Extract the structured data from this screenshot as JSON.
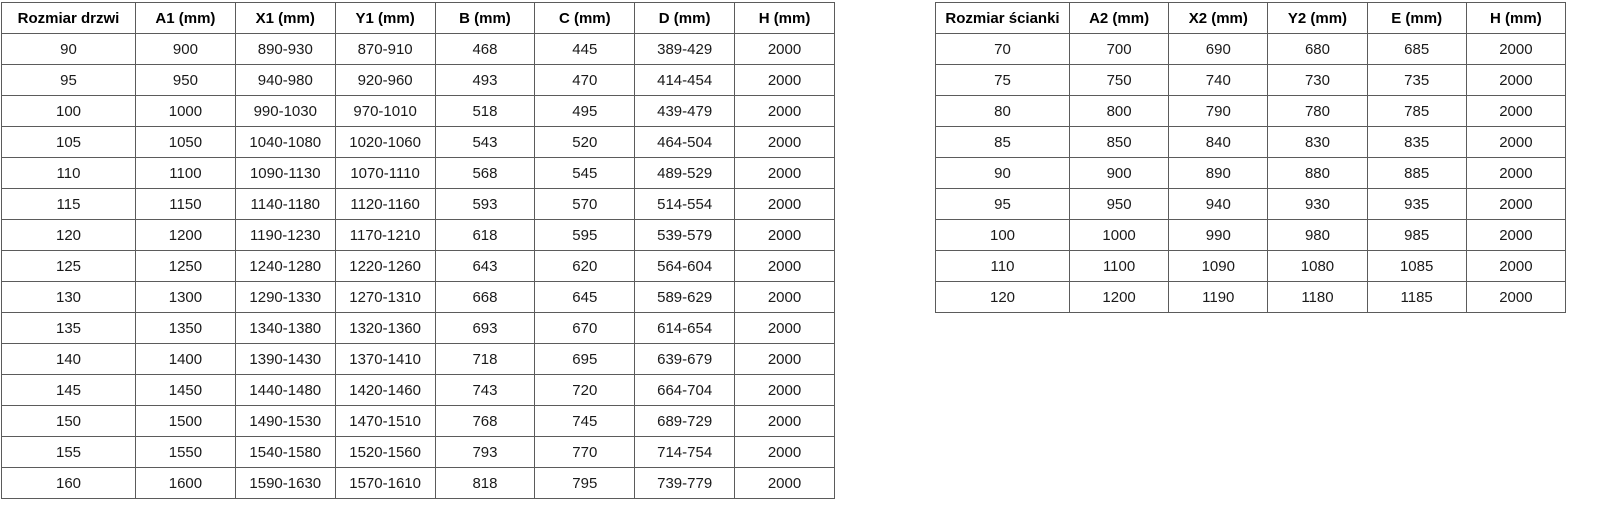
{
  "colors": {
    "background": "#ffffff",
    "border": "#5b5b5b",
    "header_text": "#000000",
    "cell_text": "#1a1a1a"
  },
  "tables": [
    {
      "name": "door-size-table",
      "headers": [
        "Rozmiar drzwi",
        "A1 (mm)",
        "X1 (mm)",
        "Y1 (mm)",
        "B (mm)",
        "C (mm)",
        "D (mm)",
        "H (mm)"
      ],
      "rows": [
        [
          "90",
          "900",
          "890-930",
          "870-910",
          "468",
          "445",
          "389-429",
          "2000"
        ],
        [
          "95",
          "950",
          "940-980",
          "920-960",
          "493",
          "470",
          "414-454",
          "2000"
        ],
        [
          "100",
          "1000",
          "990-1030",
          "970-1010",
          "518",
          "495",
          "439-479",
          "2000"
        ],
        [
          "105",
          "1050",
          "1040-1080",
          "1020-1060",
          "543",
          "520",
          "464-504",
          "2000"
        ],
        [
          "110",
          "1100",
          "1090-1130",
          "1070-1110",
          "568",
          "545",
          "489-529",
          "2000"
        ],
        [
          "115",
          "1150",
          "1140-1180",
          "1120-1160",
          "593",
          "570",
          "514-554",
          "2000"
        ],
        [
          "120",
          "1200",
          "1190-1230",
          "1170-1210",
          "618",
          "595",
          "539-579",
          "2000"
        ],
        [
          "125",
          "1250",
          "1240-1280",
          "1220-1260",
          "643",
          "620",
          "564-604",
          "2000"
        ],
        [
          "130",
          "1300",
          "1290-1330",
          "1270-1310",
          "668",
          "645",
          "589-629",
          "2000"
        ],
        [
          "135",
          "1350",
          "1340-1380",
          "1320-1360",
          "693",
          "670",
          "614-654",
          "2000"
        ],
        [
          "140",
          "1400",
          "1390-1430",
          "1370-1410",
          "718",
          "695",
          "639-679",
          "2000"
        ],
        [
          "145",
          "1450",
          "1440-1480",
          "1420-1460",
          "743",
          "720",
          "664-704",
          "2000"
        ],
        [
          "150",
          "1500",
          "1490-1530",
          "1470-1510",
          "768",
          "745",
          "689-729",
          "2000"
        ],
        [
          "155",
          "1550",
          "1540-1580",
          "1520-1560",
          "793",
          "770",
          "714-754",
          "2000"
        ],
        [
          "160",
          "1600",
          "1590-1630",
          "1570-1610",
          "818",
          "795",
          "739-779",
          "2000"
        ]
      ]
    },
    {
      "name": "wall-size-table",
      "headers": [
        "Rozmiar ścianki",
        "A2 (mm)",
        "X2 (mm)",
        "Y2 (mm)",
        "E (mm)",
        "H (mm)"
      ],
      "rows": [
        [
          "70",
          "700",
          "690",
          "680",
          "685",
          "2000"
        ],
        [
          "75",
          "750",
          "740",
          "730",
          "735",
          "2000"
        ],
        [
          "80",
          "800",
          "790",
          "780",
          "785",
          "2000"
        ],
        [
          "85",
          "850",
          "840",
          "830",
          "835",
          "2000"
        ],
        [
          "90",
          "900",
          "890",
          "880",
          "885",
          "2000"
        ],
        [
          "95",
          "950",
          "940",
          "930",
          "935",
          "2000"
        ],
        [
          "100",
          "1000",
          "990",
          "980",
          "985",
          "2000"
        ],
        [
          "110",
          "1100",
          "1090",
          "1080",
          "1085",
          "2000"
        ],
        [
          "120",
          "1200",
          "1190",
          "1180",
          "1185",
          "2000"
        ]
      ]
    }
  ]
}
